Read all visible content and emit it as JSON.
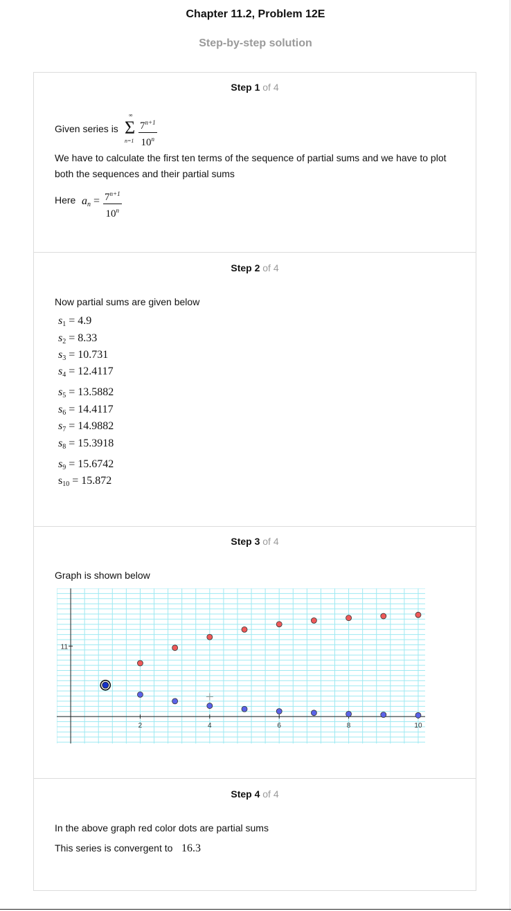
{
  "header": {
    "title": "Chapter 11.2, Problem 12E",
    "subtitle": "Step-by-step solution"
  },
  "steps": [
    {
      "num": "Step 1",
      "of": " of 4",
      "given_label": "Given series is",
      "series_upper": "∞",
      "series_lower": "n=1",
      "series_num": "7",
      "series_num_exp": "n+1",
      "series_den": "10",
      "series_den_exp": "n",
      "line1": "We have to calculate the first ten terms of the sequence of partial sums and we have to plot",
      "line2": "both the sequences and their partial sums",
      "here_label": "Here",
      "an_lhs": "a",
      "an_sub": "n",
      "an_eq": "=",
      "an_num": "7",
      "an_num_exp": "n+1",
      "an_den": "10",
      "an_den_exp": "n"
    },
    {
      "num": "Step 2",
      "of": " of 4",
      "intro": "Now partial sums are given below",
      "sums": [
        {
          "s": "s",
          "i": "1",
          "val": "= 4.9"
        },
        {
          "s": "s",
          "i": "2",
          "val": "= 8.33"
        },
        {
          "s": "s",
          "i": "3",
          "val": "= 10.731"
        },
        {
          "s": "s",
          "i": "4",
          "val": "= 12.4117"
        },
        {
          "s": "s",
          "i": "5",
          "val": "= 13.5882"
        },
        {
          "s": "s",
          "i": "6",
          "val": "= 14.4117"
        },
        {
          "s": "s",
          "i": "7",
          "val": "= 14.9882"
        },
        {
          "s": "s",
          "i": "8",
          "val": "= 15.3918"
        },
        {
          "s": "s",
          "i": "9",
          "val": "= 15.6742"
        },
        {
          "s": "s",
          "i": "10",
          "val": "= 15.872"
        }
      ]
    },
    {
      "num": "Step 3",
      "of": " of 4",
      "intro": "Graph is shown below"
    },
    {
      "num": "Step 4",
      "of": " of 4",
      "line1": "In the above graph red color dots are partial sums",
      "line2": "This series is convergent to",
      "value": "16.3"
    }
  ],
  "chart_data": {
    "type": "scatter",
    "xlim": [
      -0.4,
      10.2
    ],
    "ylim": [
      -4.2,
      20
    ],
    "xticks": [
      2,
      4,
      6,
      8,
      10
    ],
    "yticks": [
      11
    ],
    "grid": true,
    "series": [
      {
        "color": "#ef5a5a",
        "points": [
          [
            2,
            8.33
          ],
          [
            3,
            10.731
          ],
          [
            4,
            12.4117
          ],
          [
            5,
            13.5882
          ],
          [
            6,
            14.4117
          ],
          [
            7,
            14.9882
          ],
          [
            8,
            15.3918
          ],
          [
            9,
            15.6742
          ],
          [
            10,
            15.872
          ]
        ]
      },
      {
        "color": "#5b63e8",
        "points": [
          [
            2,
            3.43
          ],
          [
            3,
            2.401
          ],
          [
            4,
            1.681
          ],
          [
            5,
            1.176
          ],
          [
            6,
            0.824
          ],
          [
            7,
            0.576
          ],
          [
            8,
            0.404
          ],
          [
            9,
            0.282
          ],
          [
            10,
            0.198
          ]
        ]
      },
      {
        "color": "#1530c8",
        "highlight": true,
        "points": [
          [
            1,
            4.9
          ]
        ]
      }
    ],
    "cursor_marker": [
      4,
      3.1
    ]
  }
}
